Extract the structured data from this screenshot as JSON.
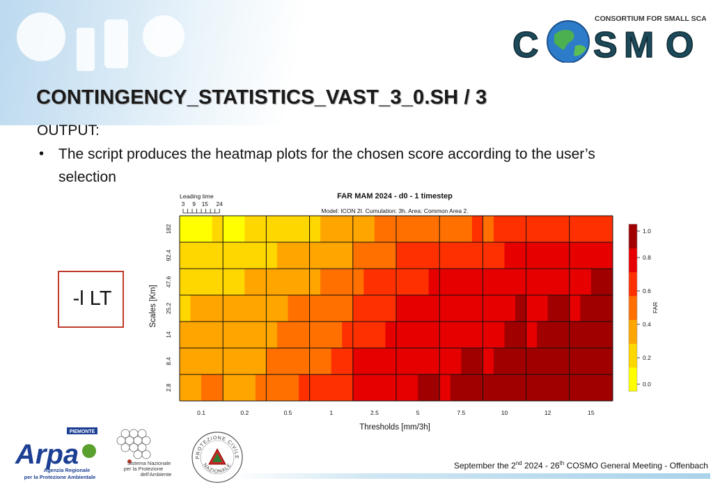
{
  "slide": {
    "title": "CONTINGENCY_STATISTICS_VAST_3_0.SH / 3",
    "output_label": "OUTPUT:",
    "bullet_symbol": "•",
    "bullet_text": "The script produces the heatmap plots for the chosen score according to the user’s selection",
    "option_text": "-l LT"
  },
  "header_logo": {
    "caption": "CONSORTIUM FOR SMALL SCALE MODELING",
    "letters": [
      "C",
      "S",
      "M",
      "O"
    ],
    "icon": "globe-icon"
  },
  "footer": {
    "pre": "September the 2",
    "sup1": "nd",
    "mid": " 2024 - 26",
    "sup2": "th",
    "post": " COSMO General Meeting - Offenbach"
  },
  "logos": {
    "arpa": {
      "top": "PIEMONTE",
      "main": "Arpa",
      "line1": "Agenzia Regionale",
      "line2": "per la Protezione Ambientale"
    },
    "snpa": {
      "line1": "Sistema Nazionale",
      "line2": "per la Protezione",
      "line3": "dell'Ambiente"
    },
    "protezione_civile": {
      "text_top": "PROTEZIONE CIVILE",
      "text_bottom": "NAZIONALE"
    }
  },
  "colors": {
    "title_shadow": "#9a9a9a",
    "option_border": "#c0392b",
    "cosmo_dark": "#1d4a5a",
    "arpa_blue": "#1c3f94",
    "arpa_green": "#5aa02c"
  },
  "chart_data": {
    "type": "heatmap",
    "title": "FAR MAM 2024 - d0 - 1 timestep",
    "subtitle": "Model: ICON 2I. Cumulation: 3h. Area: Common Area 2.",
    "xlabel": "Thresholds [mm/3h]",
    "ylabel": "Scales [Km]",
    "colorbar_label": "FAR",
    "colorbar_ticks": [
      "0.0",
      "0.2",
      "0.4",
      "0.6",
      "0.8",
      "1.0"
    ],
    "clim": [
      0,
      1
    ],
    "colormap": [
      "#ffff00",
      "#ffd700",
      "#ffa500",
      "#ff7000",
      "#ff3000",
      "#e60000",
      "#a00000"
    ],
    "leading_time_label": "Leading time",
    "leading_time_ticks": [
      "3",
      "9",
      "15",
      "24"
    ],
    "thresholds": [
      "0.1",
      "0.2",
      "0.5",
      "1",
      "2.5",
      "5",
      "7.5",
      "10",
      "12",
      "15"
    ],
    "scales": [
      "2.8",
      "8.4",
      "14",
      "25.2",
      "47.6",
      "92.4",
      "182"
    ],
    "values": [
      [
        0.42,
        0.4,
        0.55,
        0.62,
        0.8,
        0.85,
        0.88,
        0.9,
        0.92,
        0.95
      ],
      [
        0.38,
        0.38,
        0.48,
        0.58,
        0.75,
        0.82,
        0.86,
        0.88,
        0.9,
        0.93
      ],
      [
        0.32,
        0.35,
        0.45,
        0.55,
        0.7,
        0.78,
        0.82,
        0.85,
        0.88,
        0.9
      ],
      [
        0.3,
        0.32,
        0.42,
        0.52,
        0.66,
        0.75,
        0.8,
        0.83,
        0.85,
        0.88
      ],
      [
        0.25,
        0.28,
        0.36,
        0.45,
        0.6,
        0.7,
        0.77,
        0.8,
        0.82,
        0.85
      ],
      [
        0.18,
        0.22,
        0.3,
        0.38,
        0.52,
        0.62,
        0.68,
        0.72,
        0.75,
        0.78
      ],
      [
        0.12,
        0.15,
        0.22,
        0.3,
        0.42,
        0.5,
        0.55,
        0.6,
        0.62,
        0.65
      ]
    ]
  }
}
